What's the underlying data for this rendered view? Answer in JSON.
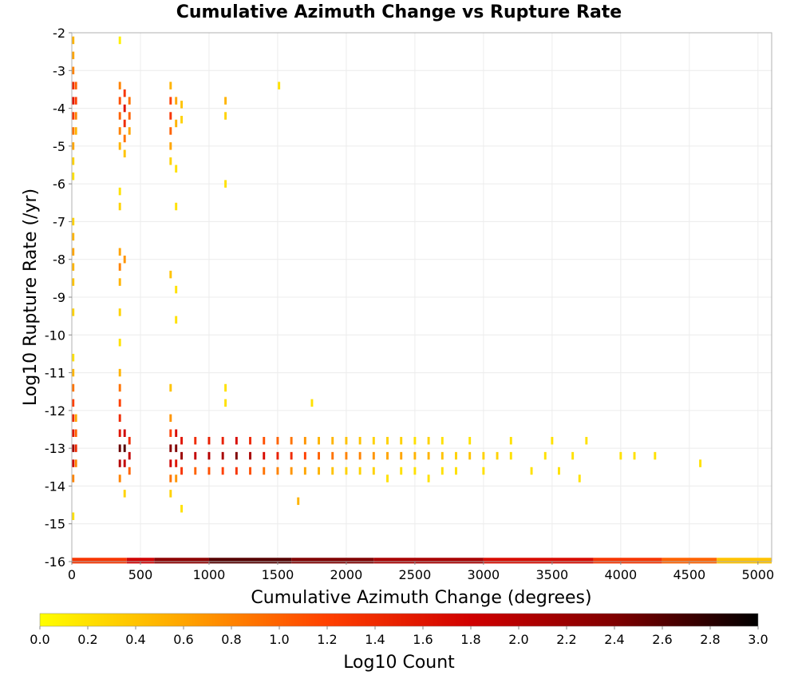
{
  "chart_data": {
    "type": "heatmap",
    "title": "Cumulative Azimuth Change vs Rupture Rate",
    "xlabel": "Cumulative Azimuth Change (degrees)",
    "ylabel": "Log10 Rupture Rate (/yr)",
    "xlim": [
      0,
      5100
    ],
    "ylim": [
      -16,
      -2
    ],
    "x_ticks": [
      "0",
      "500",
      "1000",
      "1500",
      "2000",
      "2500",
      "3000",
      "3500",
      "4000",
      "4500",
      "5000"
    ],
    "y_ticks": [
      "-2",
      "-3",
      "-4",
      "-5",
      "-6",
      "-7",
      "-8",
      "-9",
      "-10",
      "-11",
      "-12",
      "-13",
      "-14",
      "-15",
      "-16"
    ],
    "grid": true,
    "bin_width_x": 17,
    "bin_height_y": 0.2,
    "colorbar": {
      "label": "Log10 Count",
      "range": [
        0.0,
        3.0
      ],
      "ticks": [
        "0.0",
        "0.2",
        "0.4",
        "0.6",
        "0.8",
        "1.0",
        "1.2",
        "1.4",
        "1.6",
        "1.8",
        "2.0",
        "2.2",
        "2.4",
        "2.6",
        "2.8",
        "3.0"
      ],
      "colors": [
        "#ffff00",
        "#ffa500",
        "#ff4000",
        "#d00000",
        "#800000",
        "#000000"
      ]
    },
    "cells": [
      [
        10,
        -2.2,
        0.5
      ],
      [
        10,
        -2.6,
        0.6
      ],
      [
        10,
        -3.0,
        0.8
      ],
      [
        10,
        -3.4,
        1.4
      ],
      [
        10,
        -3.8,
        1.6
      ],
      [
        10,
        -4.2,
        1.3
      ],
      [
        10,
        -4.6,
        0.9
      ],
      [
        10,
        -5.0,
        0.6
      ],
      [
        10,
        -5.4,
        0.3
      ],
      [
        10,
        -5.8,
        0.2
      ],
      [
        30,
        -3.4,
        1.0
      ],
      [
        30,
        -3.8,
        1.2
      ],
      [
        30,
        -4.2,
        0.8
      ],
      [
        30,
        -4.6,
        0.5
      ],
      [
        10,
        -7.0,
        0.3
      ],
      [
        10,
        -7.4,
        0.5
      ],
      [
        10,
        -7.8,
        0.6
      ],
      [
        10,
        -8.2,
        0.5
      ],
      [
        10,
        -8.6,
        0.4
      ],
      [
        10,
        -9.4,
        0.3
      ],
      [
        10,
        -10.6,
        0.2
      ],
      [
        10,
        -11.0,
        0.5
      ],
      [
        10,
        -11.4,
        0.9
      ],
      [
        10,
        -11.8,
        1.2
      ],
      [
        10,
        -12.2,
        1.4
      ],
      [
        10,
        -12.6,
        1.6
      ],
      [
        10,
        -13.0,
        2.2
      ],
      [
        10,
        -13.4,
        1.8
      ],
      [
        10,
        -13.8,
        0.8
      ],
      [
        10,
        -14.8,
        0.2
      ],
      [
        30,
        -12.2,
        0.6
      ],
      [
        30,
        -12.6,
        1.0
      ],
      [
        30,
        -13.0,
        1.4
      ],
      [
        30,
        -13.4,
        0.8
      ],
      [
        350,
        -2.2,
        0.1
      ],
      [
        350,
        -3.4,
        0.8
      ],
      [
        350,
        -3.8,
        1.1
      ],
      [
        350,
        -4.2,
        1.0
      ],
      [
        350,
        -4.6,
        0.8
      ],
      [
        350,
        -5.0,
        0.5
      ],
      [
        350,
        -6.2,
        0.2
      ],
      [
        350,
        -6.6,
        0.3
      ],
      [
        350,
        -7.8,
        0.6
      ],
      [
        350,
        -8.2,
        0.8
      ],
      [
        350,
        -8.6,
        0.5
      ],
      [
        350,
        -9.4,
        0.3
      ],
      [
        350,
        -10.2,
        0.2
      ],
      [
        350,
        -11.0,
        0.5
      ],
      [
        350,
        -11.4,
        0.9
      ],
      [
        350,
        -11.8,
        1.2
      ],
      [
        350,
        -12.2,
        1.4
      ],
      [
        350,
        -12.6,
        1.6
      ],
      [
        350,
        -13.0,
        2.5
      ],
      [
        350,
        -13.4,
        2.0
      ],
      [
        350,
        -13.8,
        0.8
      ],
      [
        385,
        -3.6,
        1.3
      ],
      [
        385,
        -4.0,
        1.6
      ],
      [
        385,
        -4.4,
        1.4
      ],
      [
        385,
        -4.8,
        0.9
      ],
      [
        385,
        -5.2,
        0.4
      ],
      [
        385,
        -8.0,
        0.7
      ],
      [
        385,
        -12.6,
        1.8
      ],
      [
        385,
        -13.0,
        2.6
      ],
      [
        385,
        -13.4,
        1.9
      ],
      [
        385,
        -14.2,
        0.3
      ],
      [
        420,
        -3.8,
        0.9
      ],
      [
        420,
        -4.2,
        1.0
      ],
      [
        420,
        -4.6,
        0.6
      ],
      [
        420,
        -12.8,
        1.4
      ],
      [
        420,
        -13.2,
        1.9
      ],
      [
        420,
        -13.6,
        1.0
      ],
      [
        720,
        -3.4,
        0.5
      ],
      [
        720,
        -3.8,
        1.2
      ],
      [
        720,
        -4.2,
        1.3
      ],
      [
        720,
        -4.6,
        1.0
      ],
      [
        720,
        -5.0,
        0.6
      ],
      [
        720,
        -5.4,
        0.3
      ],
      [
        720,
        -8.4,
        0.4
      ],
      [
        720,
        -11.4,
        0.4
      ],
      [
        720,
        -12.2,
        0.7
      ],
      [
        720,
        -12.6,
        1.2
      ],
      [
        720,
        -13.0,
        2.3
      ],
      [
        720,
        -13.4,
        1.8
      ],
      [
        720,
        -13.8,
        0.9
      ],
      [
        720,
        -14.2,
        0.3
      ],
      [
        760,
        -3.8,
        0.6
      ],
      [
        760,
        -4.4,
        0.5
      ],
      [
        760,
        -5.6,
        0.2
      ],
      [
        760,
        -6.6,
        0.2
      ],
      [
        760,
        -8.8,
        0.2
      ],
      [
        760,
        -9.6,
        0.2
      ],
      [
        760,
        -12.6,
        1.7
      ],
      [
        760,
        -13.0,
        2.4
      ],
      [
        760,
        -13.4,
        1.6
      ],
      [
        760,
        -13.8,
        0.7
      ],
      [
        800,
        -3.9,
        0.4
      ],
      [
        800,
        -4.3,
        0.3
      ],
      [
        800,
        -12.8,
        1.6
      ],
      [
        800,
        -13.2,
        2.2
      ],
      [
        800,
        -13.6,
        1.3
      ],
      [
        800,
        -14.6,
        0.2
      ],
      [
        1120,
        -3.8,
        0.5
      ],
      [
        1120,
        -4.2,
        0.3
      ],
      [
        1120,
        -6.0,
        0.2
      ],
      [
        1120,
        -11.4,
        0.2
      ],
      [
        1120,
        -11.8,
        0.2
      ],
      [
        1510,
        -3.4,
        0.2
      ],
      [
        1750,
        -11.8,
        0.2
      ],
      [
        1650,
        -14.4,
        0.5
      ],
      [
        900,
        -12.8,
        1.4
      ],
      [
        900,
        -13.2,
        1.9
      ],
      [
        900,
        -13.6,
        1.0
      ],
      [
        1000,
        -12.8,
        1.5
      ],
      [
        1000,
        -13.2,
        2.0
      ],
      [
        1000,
        -13.6,
        1.1
      ],
      [
        1100,
        -12.8,
        1.5
      ],
      [
        1100,
        -13.2,
        2.1
      ],
      [
        1100,
        -13.6,
        1.2
      ],
      [
        1200,
        -12.8,
        1.7
      ],
      [
        1200,
        -13.2,
        2.4
      ],
      [
        1200,
        -13.6,
        1.3
      ],
      [
        1300,
        -12.8,
        1.4
      ],
      [
        1300,
        -13.2,
        2.1
      ],
      [
        1300,
        -13.6,
        1.1
      ],
      [
        1400,
        -12.8,
        1.1
      ],
      [
        1400,
        -13.2,
        1.7
      ],
      [
        1400,
        -13.6,
        0.9
      ],
      [
        1500,
        -12.8,
        1.0
      ],
      [
        1500,
        -13.2,
        1.5
      ],
      [
        1500,
        -13.6,
        0.8
      ],
      [
        1600,
        -12.8,
        0.9
      ],
      [
        1600,
        -13.2,
        1.4
      ],
      [
        1600,
        -13.6,
        0.7
      ],
      [
        1700,
        -12.8,
        0.7
      ],
      [
        1700,
        -13.2,
        1.2
      ],
      [
        1700,
        -13.6,
        0.6
      ],
      [
        1800,
        -12.8,
        0.5
      ],
      [
        1800,
        -13.2,
        1.0
      ],
      [
        1800,
        -13.6,
        0.5
      ],
      [
        1900,
        -12.8,
        0.5
      ],
      [
        1900,
        -13.2,
        0.9
      ],
      [
        1900,
        -13.6,
        0.4
      ],
      [
        2000,
        -12.8,
        0.4
      ],
      [
        2000,
        -13.2,
        0.8
      ],
      [
        2000,
        -13.6,
        0.3
      ],
      [
        2100,
        -12.8,
        0.4
      ],
      [
        2100,
        -13.2,
        0.8
      ],
      [
        2100,
        -13.6,
        0.3
      ],
      [
        2200,
        -12.8,
        0.3
      ],
      [
        2200,
        -13.2,
        0.7
      ],
      [
        2200,
        -13.6,
        0.3
      ],
      [
        2300,
        -12.8,
        0.3
      ],
      [
        2300,
        -13.2,
        0.6
      ],
      [
        2300,
        -13.8,
        0.2
      ],
      [
        2400,
        -12.8,
        0.3
      ],
      [
        2400,
        -13.2,
        0.6
      ],
      [
        2400,
        -13.6,
        0.2
      ],
      [
        2500,
        -12.8,
        0.2
      ],
      [
        2500,
        -13.2,
        0.5
      ],
      [
        2500,
        -13.6,
        0.2
      ],
      [
        2600,
        -12.8,
        0.3
      ],
      [
        2600,
        -13.2,
        0.5
      ],
      [
        2600,
        -13.8,
        0.2
      ],
      [
        2700,
        -12.8,
        0.2
      ],
      [
        2700,
        -13.2,
        0.4
      ],
      [
        2700,
        -13.6,
        0.2
      ],
      [
        2800,
        -13.2,
        0.3
      ],
      [
        2800,
        -13.6,
        0.2
      ],
      [
        2900,
        -12.8,
        0.2
      ],
      [
        2900,
        -13.2,
        0.4
      ],
      [
        3000,
        -13.2,
        0.3
      ],
      [
        3000,
        -13.6,
        0.2
      ],
      [
        3100,
        -13.2,
        0.3
      ],
      [
        3200,
        -12.8,
        0.2
      ],
      [
        3200,
        -13.2,
        0.2
      ],
      [
        3350,
        -13.6,
        0.2
      ],
      [
        3450,
        -13.2,
        0.2
      ],
      [
        3500,
        -12.8,
        0.2
      ],
      [
        3550,
        -13.6,
        0.2
      ],
      [
        3650,
        -13.2,
        0.2
      ],
      [
        3700,
        -13.8,
        0.2
      ],
      [
        3750,
        -12.8,
        0.2
      ],
      [
        4000,
        -13.2,
        0.2
      ],
      [
        4100,
        -13.2,
        0.2
      ],
      [
        4250,
        -13.2,
        0.2
      ],
      [
        4580,
        -13.4,
        0.2
      ]
    ],
    "bottom_row": {
      "y": -16,
      "segments": [
        [
          0,
          400,
          1.3
        ],
        [
          400,
          600,
          1.8
        ],
        [
          600,
          1000,
          2.3
        ],
        [
          1000,
          1600,
          2.6
        ],
        [
          1600,
          2200,
          2.4
        ],
        [
          2200,
          3000,
          2.1
        ],
        [
          3000,
          3800,
          1.7
        ],
        [
          3800,
          4300,
          1.3
        ],
        [
          4300,
          4700,
          1.0
        ],
        [
          4700,
          5100,
          0.4
        ]
      ]
    }
  }
}
